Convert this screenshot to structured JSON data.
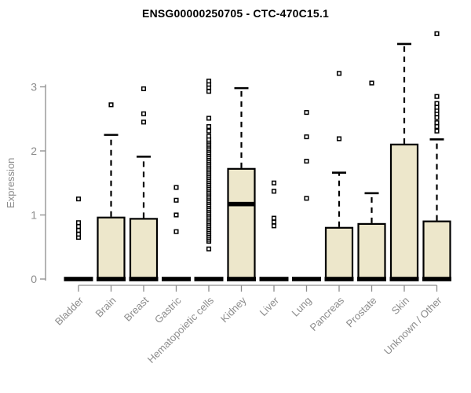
{
  "chart_data": {
    "type": "boxplot",
    "title": "ENSG00000250705 - CTC-470C15.1",
    "ylabel": "Expression",
    "xlabel": "",
    "yticks": [
      0,
      1,
      2,
      3
    ],
    "ylim": [
      0,
      3.9
    ],
    "grid": false,
    "legend": "none",
    "background_color": "#FFFFFF",
    "title_color": "#000000",
    "axis_color": "#8C8C8C",
    "box_fill_color": "#EDE7CB",
    "box_stroke_color": "#000000",
    "outlier_marker": "open-square",
    "categories": [
      "Bladder",
      "Brain",
      "Breast",
      "Gastric",
      "Hematopoietic cells",
      "Kidney",
      "Liver",
      "Lung",
      "Pancreas",
      "Prostate",
      "Skin",
      "Unknown / Other"
    ],
    "series": [
      {
        "category": "Bladder",
        "q1": 0,
        "median": 0,
        "q3": 0,
        "whisker_low": 0,
        "whisker_high": 0,
        "outliers": [
          0.65,
          0.7,
          0.76,
          0.82,
          0.88,
          1.25
        ]
      },
      {
        "category": "Brain",
        "q1": 0,
        "median": 0,
        "q3": 0.96,
        "whisker_low": 0,
        "whisker_high": 2.25,
        "outliers": [
          2.72
        ]
      },
      {
        "category": "Breast",
        "q1": 0,
        "median": 0,
        "q3": 0.94,
        "whisker_low": 0,
        "whisker_high": 1.91,
        "outliers": [
          2.45,
          2.58,
          2.97
        ]
      },
      {
        "category": "Gastric",
        "q1": 0,
        "median": 0,
        "q3": 0,
        "whisker_low": 0,
        "whisker_high": 0,
        "outliers": [
          0.74,
          1.0,
          1.23,
          1.43
        ]
      },
      {
        "category": "Hematopoietic cells",
        "q1": 0,
        "median": 0,
        "q3": 0,
        "whisker_low": 0,
        "whisker_high": 0,
        "outliers": [
          0.47,
          0.59,
          0.62,
          0.65,
          0.68,
          0.71,
          0.74,
          0.77,
          0.8,
          0.83,
          0.86,
          0.89,
          0.92,
          0.95,
          0.98,
          1.01,
          1.04,
          1.07,
          1.1,
          1.13,
          1.16,
          1.19,
          1.22,
          1.25,
          1.28,
          1.31,
          1.34,
          1.37,
          1.4,
          1.43,
          1.46,
          1.49,
          1.52,
          1.55,
          1.58,
          1.61,
          1.64,
          1.67,
          1.7,
          1.73,
          1.76,
          1.79,
          1.82,
          1.85,
          1.88,
          1.91,
          1.94,
          1.97,
          2.0,
          2.03,
          2.06,
          2.09,
          2.12,
          2.15,
          2.18,
          2.23,
          2.31,
          2.38,
          2.51,
          2.93,
          2.99,
          3.04,
          3.09
        ]
      },
      {
        "category": "Kidney",
        "q1": 0,
        "median": 1.17,
        "q3": 1.72,
        "whisker_low": 0,
        "whisker_high": 2.98,
        "outliers": []
      },
      {
        "category": "Liver",
        "q1": 0,
        "median": 0,
        "q3": 0,
        "whisker_low": 0,
        "whisker_high": 0,
        "outliers": [
          0.83,
          0.89,
          0.95,
          1.37,
          1.5
        ]
      },
      {
        "category": "Lung",
        "q1": 0,
        "median": 0,
        "q3": 0,
        "whisker_low": 0,
        "whisker_high": 0,
        "outliers": [
          1.26,
          1.84,
          2.22,
          2.6
        ]
      },
      {
        "category": "Pancreas",
        "q1": 0,
        "median": 0,
        "q3": 0.8,
        "whisker_low": 0,
        "whisker_high": 1.66,
        "outliers": [
          2.19,
          3.21
        ]
      },
      {
        "category": "Prostate",
        "q1": 0,
        "median": 0,
        "q3": 0.86,
        "whisker_low": 0,
        "whisker_high": 1.34,
        "outliers": [
          3.06
        ]
      },
      {
        "category": "Skin",
        "q1": 0,
        "median": 0,
        "q3": 2.1,
        "whisker_low": 0,
        "whisker_high": 3.67,
        "outliers": []
      },
      {
        "category": "Unknown / Other",
        "q1": 0,
        "median": 0,
        "q3": 0.9,
        "whisker_low": 0,
        "whisker_high": 2.18,
        "outliers": [
          2.31,
          2.38,
          2.44,
          2.52,
          2.58,
          2.63,
          2.68,
          2.74,
          2.85,
          3.83
        ]
      }
    ]
  }
}
